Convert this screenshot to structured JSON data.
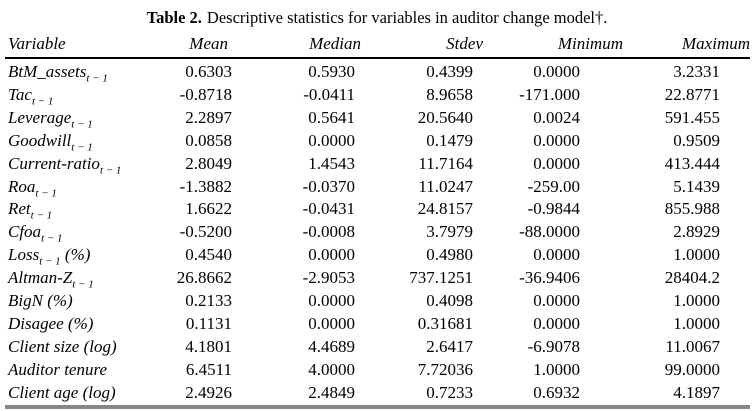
{
  "title": {
    "label": "Table 2.",
    "text": "Descriptive statistics for variables in auditor change model†."
  },
  "table": {
    "columns": [
      "Variable",
      "Mean",
      "Median",
      "Stdev",
      "Minimum",
      "Maximum"
    ],
    "rows": [
      {
        "name": "BtM_assets",
        "sub": "t − 1",
        "suffix": "",
        "mean": "0.6303",
        "median": "0.5930",
        "stdev": "0.4399",
        "minimum": "0.0000",
        "maximum": "3.2331"
      },
      {
        "name": "Tac",
        "sub": "t − 1",
        "suffix": "",
        "mean": "-0.8718",
        "median": "-0.0411",
        "stdev": "8.9658",
        "minimum": "-171.000",
        "maximum": "22.8771"
      },
      {
        "name": "Leverage",
        "sub": "t − 1",
        "suffix": "",
        "mean": "2.2897",
        "median": "0.5641",
        "stdev": "20.5640",
        "minimum": "0.0024",
        "maximum": "591.455"
      },
      {
        "name": "Goodwill",
        "sub": "t − 1",
        "suffix": "",
        "mean": "0.0858",
        "median": "0.0000",
        "stdev": "0.1479",
        "minimum": "0.0000",
        "maximum": "0.9509"
      },
      {
        "name": "Current-ratio",
        "sub": "t − 1",
        "suffix": "",
        "mean": "2.8049",
        "median": "1.4543",
        "stdev": "11.7164",
        "minimum": "0.0000",
        "maximum": "413.444"
      },
      {
        "name": "Roa",
        "sub": "t − 1",
        "suffix": "",
        "mean": "-1.3882",
        "median": "-0.0370",
        "stdev": "11.0247",
        "minimum": "-259.00",
        "maximum": "5.1439"
      },
      {
        "name": "Ret",
        "sub": "t − 1",
        "suffix": "",
        "mean": "1.6622",
        "median": "-0.0431",
        "stdev": "24.8157",
        "minimum": "-0.9844",
        "maximum": "855.988"
      },
      {
        "name": "Cfoa",
        "sub": "t − 1",
        "suffix": "",
        "mean": "-0.5200",
        "median": "-0.0008",
        "stdev": "3.7979",
        "minimum": "-88.0000",
        "maximum": "2.8929"
      },
      {
        "name": "Loss",
        "sub": "t − 1",
        "suffix": " (%)",
        "mean": "0.4540",
        "median": "0.0000",
        "stdev": "0.4980",
        "minimum": "0.0000",
        "maximum": "1.0000"
      },
      {
        "name": "Altman-Z",
        "sub": "t − 1",
        "suffix": "",
        "mean": "26.8662",
        "median": "-2.9053",
        "stdev": "737.1251",
        "minimum": "-36.9406",
        "maximum": "28404.2"
      },
      {
        "name": "BigN",
        "sub": "",
        "suffix": " (%)",
        "mean": "0.2133",
        "median": "0.0000",
        "stdev": "0.4098",
        "minimum": "0.0000",
        "maximum": "1.0000"
      },
      {
        "name": "Disagee",
        "sub": "",
        "suffix": " (%)",
        "mean": "0.1131",
        "median": "0.0000",
        "stdev": "0.31681",
        "minimum": "0.0000",
        "maximum": "1.0000"
      },
      {
        "name": "Client size",
        "sub": "",
        "suffix": " (log)",
        "mean": "4.1801",
        "median": "4.4689",
        "stdev": "2.6417",
        "minimum": "-6.9078",
        "maximum": "11.0067"
      },
      {
        "name": "Auditor tenure",
        "sub": "",
        "suffix": "",
        "mean": "6.4511",
        "median": "4.0000",
        "stdev": "7.72036",
        "minimum": "1.0000",
        "maximum": "99.0000"
      },
      {
        "name": "Client age",
        "sub": "",
        "suffix": " (log)",
        "mean": "2.4926",
        "median": "2.4849",
        "stdev": "0.7233",
        "minimum": "0.6932",
        "maximum": "4.1897"
      }
    ]
  },
  "colors": {
    "text": "#000000",
    "header_rule": "#000000",
    "bottom_rule": "#868686",
    "background": "#ffffff"
  }
}
